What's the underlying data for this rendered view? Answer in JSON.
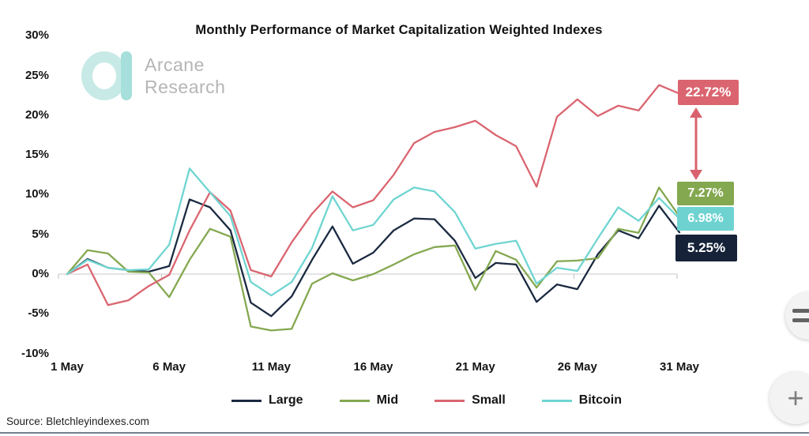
{
  "watermark": {
    "brand_line1": "Arcane",
    "brand_line2": "Research"
  },
  "source_note": "Source: Bletchleyindexes.com",
  "colors": {
    "large": "#1b2a41",
    "mid": "#84a850",
    "small": "#da6570",
    "bitcoin": "#6fd5d1",
    "zero_line": "#dcdcdc",
    "axis_tick": "#c9c9c9",
    "arrow": "#d9626e",
    "label_large_bg": "#152238",
    "label_mid_bg": "#84a850",
    "label_bitcoin_bg": "#6ed3d0",
    "label_small_bg": "#da6570"
  },
  "value_labels": [
    {
      "series": "Small",
      "text": "22.72%",
      "color": "#da6570"
    },
    {
      "series": "Mid",
      "text": "7.27%",
      "color": "#84a850"
    },
    {
      "series": "Bitcoin",
      "text": "6.98%",
      "color": "#6ed3d0"
    },
    {
      "series": "Large",
      "text": "5.25%",
      "color": "#152238"
    }
  ],
  "floating_buttons": {
    "plus": "+",
    "compare_icon": "swap-horizontal"
  },
  "chart_data": {
    "type": "line",
    "title": "Monthly Performance of Market Capitalization Weighted Indexes",
    "x_unit": "day of May",
    "x": [
      1,
      2,
      3,
      4,
      5,
      6,
      7,
      8,
      9,
      10,
      11,
      12,
      13,
      14,
      15,
      16,
      17,
      18,
      19,
      20,
      21,
      22,
      23,
      24,
      25,
      26,
      27,
      28,
      29,
      30,
      31
    ],
    "xticks": [
      {
        "day": 1,
        "label": "1 May"
      },
      {
        "day": 6,
        "label": "6 May"
      },
      {
        "day": 11,
        "label": "11 May"
      },
      {
        "day": 16,
        "label": "16 May"
      },
      {
        "day": 21,
        "label": "21 May"
      },
      {
        "day": 26,
        "label": "26 May"
      },
      {
        "day": 31,
        "label": "31 May"
      }
    ],
    "yticks": [
      {
        "value": 30,
        "label": "30%"
      },
      {
        "value": 25,
        "label": "25%"
      },
      {
        "value": 20,
        "label": "20%"
      },
      {
        "value": 15,
        "label": "15%"
      },
      {
        "value": 10,
        "label": "10%"
      },
      {
        "value": 5,
        "label": "5%"
      },
      {
        "value": 0,
        "label": "0%"
      },
      {
        "value": -5,
        "label": "-5%"
      },
      {
        "value": -10,
        "label": "-10%"
      }
    ],
    "ylim": [
      -10,
      30
    ],
    "grid": "horizontal line at 0% only",
    "legend_position": "bottom",
    "series": [
      {
        "name": "Large",
        "color": "#1b2a41",
        "final_value": 5.25,
        "values": [
          0,
          1.9,
          0.8,
          0.5,
          0.3,
          1.0,
          9.4,
          8.4,
          5.5,
          -3.6,
          -5.3,
          -2.8,
          1.8,
          6.0,
          1.3,
          2.7,
          5.5,
          7.0,
          6.9,
          4.2,
          -0.5,
          1.4,
          1.2,
          -3.5,
          -1.3,
          -1.9,
          2.5,
          5.5,
          4.5,
          8.6,
          5.25
        ]
      },
      {
        "name": "Mid",
        "color": "#84a850",
        "final_value": 7.27,
        "values": [
          0,
          3.0,
          2.6,
          0.3,
          0.2,
          -2.9,
          1.8,
          5.7,
          4.7,
          -6.6,
          -7.1,
          -6.9,
          -1.2,
          0.1,
          -0.8,
          0.0,
          1.2,
          2.5,
          3.4,
          3.6,
          -2.0,
          2.9,
          1.8,
          -1.7,
          1.6,
          1.7,
          2.0,
          5.7,
          5.2,
          10.9,
          7.27
        ]
      },
      {
        "name": "Small",
        "color": "#da6570",
        "final_value": 22.72,
        "values": [
          0,
          1.2,
          -3.9,
          -3.3,
          -1.5,
          -0.1,
          5.5,
          10.3,
          8.0,
          0.5,
          -0.3,
          4.0,
          7.6,
          10.4,
          8.4,
          9.3,
          12.5,
          16.5,
          17.9,
          18.5,
          19.3,
          17.5,
          16.1,
          11.0,
          19.8,
          22.0,
          19.9,
          21.2,
          20.6,
          23.8,
          22.72
        ]
      },
      {
        "name": "Bitcoin",
        "color": "#6fd5d1",
        "final_value": 6.98,
        "values": [
          0,
          1.8,
          0.8,
          0.5,
          0.6,
          3.7,
          13.3,
          10.3,
          7.3,
          -1.0,
          -2.7,
          -1.0,
          3.3,
          9.8,
          5.5,
          6.2,
          9.4,
          10.9,
          10.4,
          7.8,
          3.2,
          3.8,
          4.2,
          -1.2,
          0.8,
          0.4,
          4.5,
          8.4,
          6.7,
          9.6,
          6.98
        ]
      }
    ]
  }
}
